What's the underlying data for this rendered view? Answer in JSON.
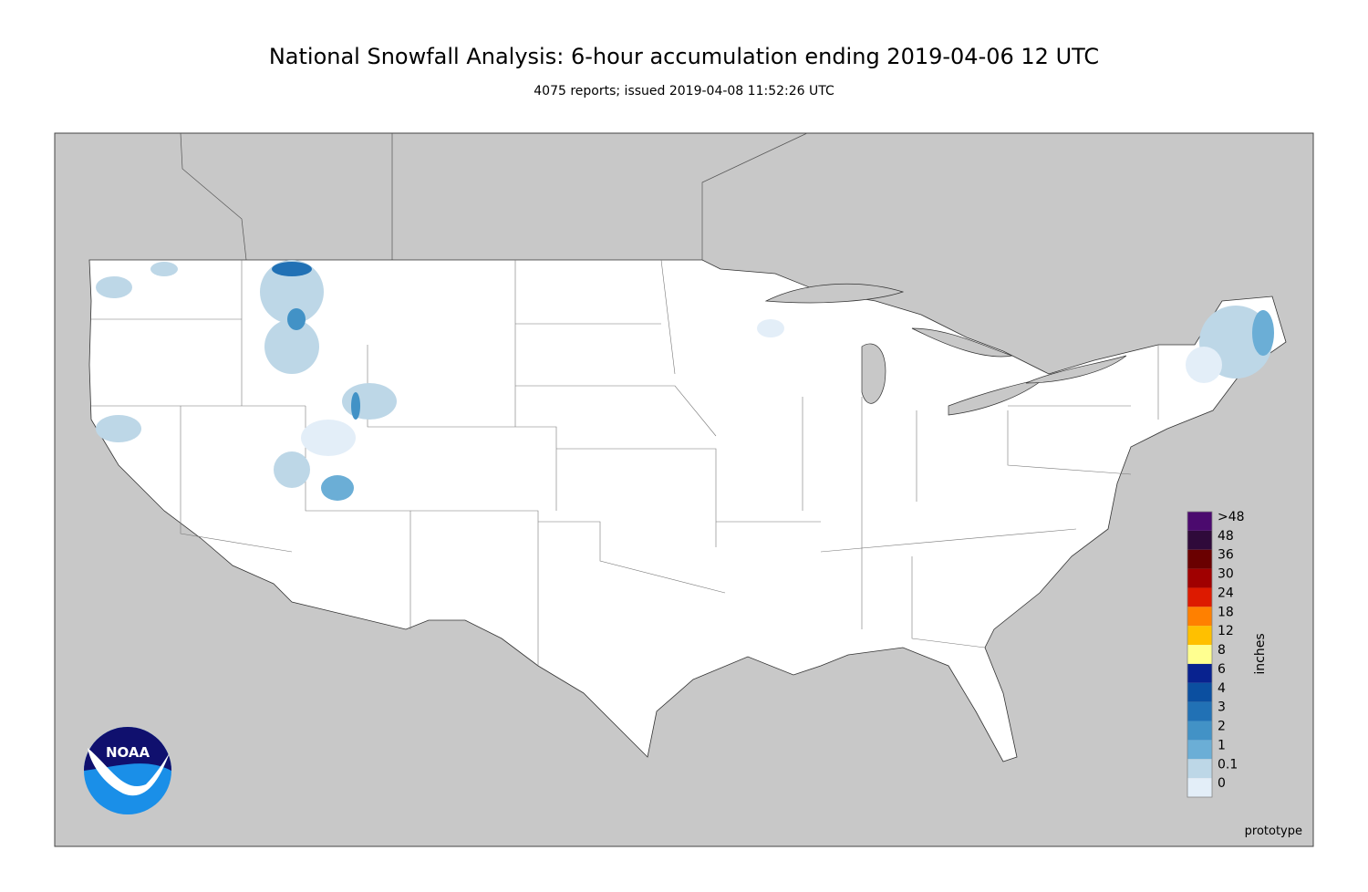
{
  "header": {
    "title": "National Snowfall Analysis: 6-hour accumulation ending 2019-04-06 12 UTC",
    "subtitle": "4075 reports; issued 2019-04-08 11:52:26 UTC"
  },
  "map": {
    "logo": "NOAA",
    "note": "prototype"
  },
  "legend": {
    "title": "inches",
    "bins": [
      {
        "label": ">48",
        "color": "#4b0a6e"
      },
      {
        "label": "48",
        "color": "#2f0a3a"
      },
      {
        "label": "36",
        "color": "#6a0000"
      },
      {
        "label": "30",
        "color": "#a00000"
      },
      {
        "label": "24",
        "color": "#dd1a00"
      },
      {
        "label": "18",
        "color": "#ff8000"
      },
      {
        "label": "12",
        "color": "#ffc000"
      },
      {
        "label": "8",
        "color": "#ffff90"
      },
      {
        "label": "6",
        "color": "#08228f"
      },
      {
        "label": "4",
        "color": "#0b4fa0"
      },
      {
        "label": "3",
        "color": "#2171b5"
      },
      {
        "label": "2",
        "color": "#4292c6"
      },
      {
        "label": "1",
        "color": "#6baed6"
      },
      {
        "label": "0.1",
        "color": "#bdd7e7"
      },
      {
        "label": "0",
        "color": "#e3eef8"
      }
    ]
  }
}
